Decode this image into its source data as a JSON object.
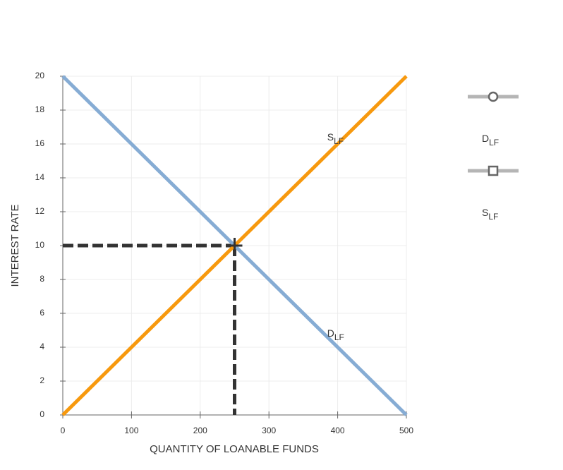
{
  "chart_data": {
    "type": "line",
    "xlabel": "QUANTITY OF LOANABLE FUNDS",
    "ylabel": "INTEREST RATE",
    "xlim": [
      0,
      500
    ],
    "ylim": [
      0,
      20
    ],
    "xticks": [
      0,
      100,
      200,
      300,
      400,
      500
    ],
    "yticks": [
      0,
      2,
      4,
      6,
      8,
      10,
      12,
      14,
      16,
      18,
      20
    ],
    "grid": true,
    "series": [
      {
        "name": "D",
        "subscript": "LF",
        "color": "#86acd4",
        "marker": "circle",
        "x": [
          0,
          500
        ],
        "values": [
          20,
          0
        ]
      },
      {
        "name": "S",
        "subscript": "LF",
        "color": "#f7990e",
        "marker": "square",
        "x": [
          0,
          500
        ],
        "values": [
          0,
          20
        ]
      }
    ],
    "equilibrium": {
      "x": 250,
      "y": 10,
      "color": "#333333"
    }
  }
}
